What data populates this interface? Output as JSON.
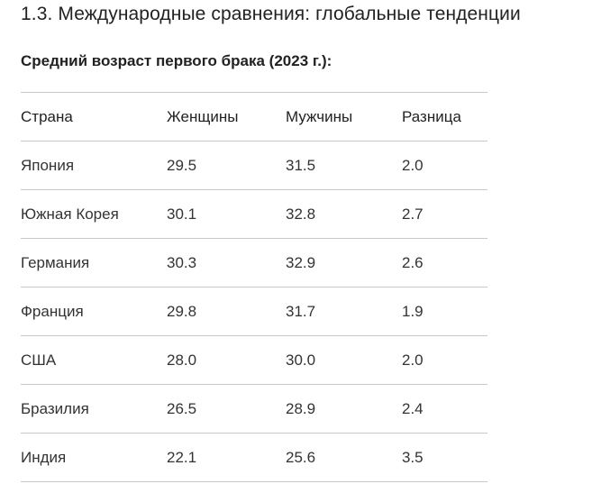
{
  "section_title": "1.3. Международные сравнения: глобальные тенденции",
  "table_caption": "Средний возраст первого брака (2023 г.):",
  "table": {
    "headers": [
      "Страна",
      "Женщины",
      "Мужчины",
      "Разница"
    ],
    "rows": [
      [
        "Япония",
        "29.5",
        "31.5",
        "2.0"
      ],
      [
        "Южная Корея",
        "30.1",
        "32.8",
        "2.7"
      ],
      [
        "Германия",
        "30.3",
        "32.9",
        "2.6"
      ],
      [
        "Франция",
        "29.8",
        "31.7",
        "1.9"
      ],
      [
        "США",
        "28.0",
        "30.0",
        "2.0"
      ],
      [
        "Бразилия",
        "26.5",
        "28.9",
        "2.4"
      ],
      [
        "Индия",
        "22.1",
        "25.6",
        "3.5"
      ]
    ]
  }
}
